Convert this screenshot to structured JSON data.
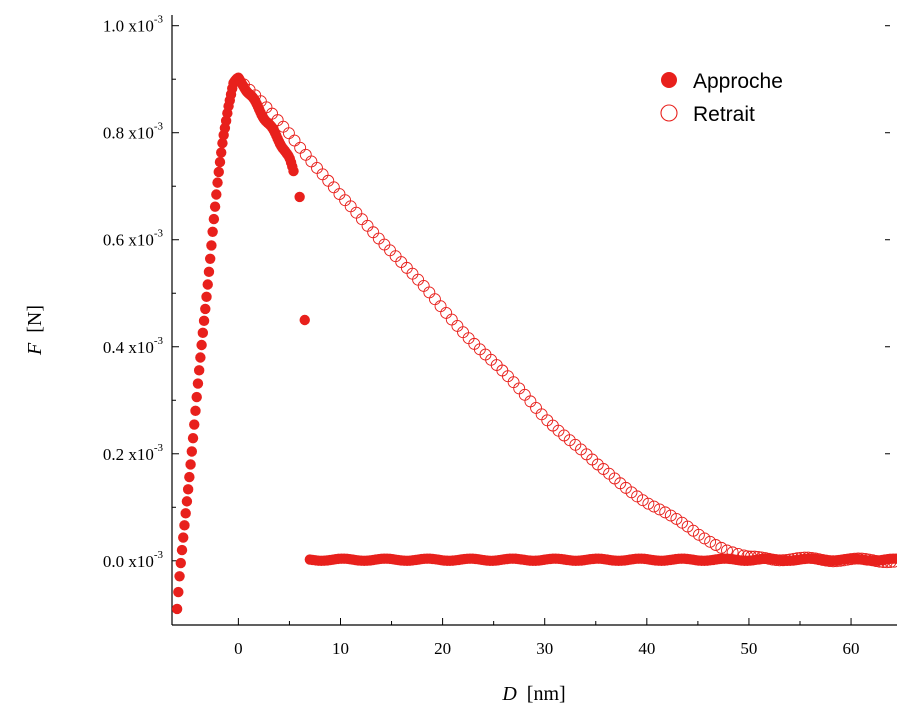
{
  "chart_data": {
    "type": "scatter",
    "xlabel_var": "D",
    "xlabel_unit": "[nm]",
    "ylabel_var": "F",
    "ylabel_unit": "[N]",
    "xlim": [
      -6.5,
      64.5
    ],
    "ylim": [
      -0.12,
      1.02
    ],
    "x_ticks": [
      0,
      10,
      20,
      30,
      40,
      50,
      60
    ],
    "x_tick_labels": [
      "0",
      "10",
      "20",
      "30",
      "40",
      "50",
      "60"
    ],
    "y_ticks": [
      0.0,
      0.2,
      0.4,
      0.6,
      0.8,
      1.0
    ],
    "y_tick_labels": [
      "0.0 x10",
      "0.2 x10",
      "0.4 x10",
      "0.6 x10",
      "0.8 x10",
      "1.0 x10"
    ],
    "y_tick_exponent": "-3",
    "y_unit_multiplier": "x10^-3",
    "grid": false,
    "legend_position": "top-right",
    "colors": {
      "series": "#e8201c",
      "axis": "#000000"
    },
    "series": [
      {
        "name": "Approche",
        "marker": "filled-circle",
        "segments": [
          {
            "x": [
              -6,
              -5.8,
              -5.5,
              -5.0,
              -4.5,
              -4.0,
              -3.5,
              -3.0,
              -2.5,
              -2.0,
              -1.5,
              -1.0,
              -0.5,
              0.0,
              0.5,
              1.0,
              1.5,
              2.0,
              2.5,
              3.0,
              3.5,
              4.0,
              4.5,
              5.0,
              5.5
            ],
            "y": [
              -0.09,
              -0.04,
              0.02,
              0.12,
              0.22,
              0.32,
              0.42,
              0.52,
              0.62,
              0.71,
              0.79,
              0.85,
              0.89,
              0.9,
              0.89,
              0.875,
              0.86,
              0.845,
              0.83,
              0.815,
              0.8,
              0.785,
              0.77,
              0.75,
              0.72
            ]
          },
          {
            "x": [
              6.0,
              6.5
            ],
            "y": [
              0.68,
              0.45
            ]
          },
          {
            "x": [
              7,
              64.5
            ],
            "y": [
              0.002,
              0.002
            ]
          }
        ]
      },
      {
        "name": "Retrait",
        "marker": "open-circle",
        "segments": [
          {
            "x": [
              0,
              5,
              10,
              15,
              20,
              25,
              30,
              35,
              40,
              45,
              48,
              50,
              64.5
            ],
            "y": [
              0.9,
              0.8,
              0.68,
              0.58,
              0.47,
              0.37,
              0.27,
              0.18,
              0.11,
              0.05,
              0.02,
              0.005,
              0.0
            ]
          }
        ]
      }
    ]
  }
}
